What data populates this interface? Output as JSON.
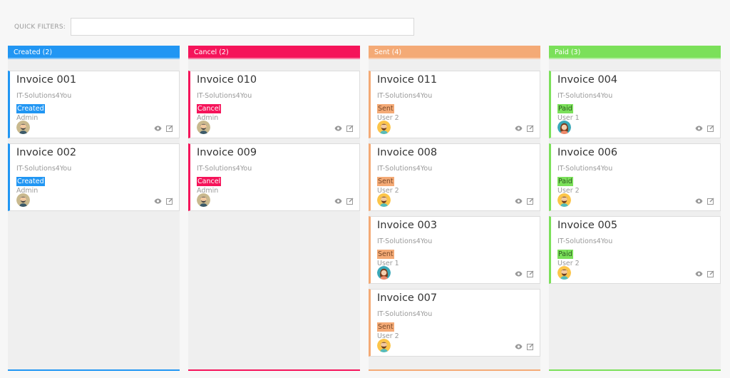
{
  "quick_filters": {
    "label": "QUICK FILTERS:",
    "value": ""
  },
  "columns": [
    {
      "title": "Created (2)",
      "color": "#2196f3",
      "cards": [
        {
          "title": "Invoice 001",
          "org": "IT-Solutions4You",
          "status": "Created",
          "user": "Admin",
          "avatar": "man-gray"
        },
        {
          "title": "Invoice 002",
          "org": "IT-Solutions4You",
          "status": "Created",
          "user": "Admin",
          "avatar": "man-gray"
        }
      ]
    },
    {
      "title": "Cancel (2)",
      "color": "#f5145a",
      "cards": [
        {
          "title": "Invoice 010",
          "org": "IT-Solutions4You",
          "status": "Cancel",
          "user": "Admin",
          "avatar": "man-gray"
        },
        {
          "title": "Invoice 009",
          "org": "IT-Solutions4You",
          "status": "Cancel",
          "user": "Admin",
          "avatar": "man-gray"
        }
      ]
    },
    {
      "title": "Sent (4)",
      "color": "#f4aa76",
      "status_text": "#7a4a2a",
      "cards": [
        {
          "title": "Invoice 011",
          "org": "IT-Solutions4You",
          "status": "Sent",
          "user": "User 2",
          "avatar": "man-yellow"
        },
        {
          "title": "Invoice 008",
          "org": "IT-Solutions4You",
          "status": "Sent",
          "user": "User 2",
          "avatar": "man-yellow"
        },
        {
          "title": "Invoice 003",
          "org": "IT-Solutions4You",
          "status": "Sent",
          "user": "User 1",
          "avatar": "woman"
        },
        {
          "title": "Invoice 007",
          "org": "IT-Solutions4You",
          "status": "Sent",
          "user": "User 2",
          "avatar": "man-yellow"
        }
      ]
    },
    {
      "title": "Paid (3)",
      "color": "#7be05a",
      "status_text": "#2d5a20",
      "cards": [
        {
          "title": "Invoice 004",
          "org": "IT-Solutions4You",
          "status": "Paid",
          "user": "User 1",
          "avatar": "woman"
        },
        {
          "title": "Invoice 006",
          "org": "IT-Solutions4You",
          "status": "Paid",
          "user": "User 2",
          "avatar": "man-yellow"
        },
        {
          "title": "Invoice 005",
          "org": "IT-Solutions4You",
          "status": "Paid",
          "user": "User 2",
          "avatar": "man-yellow"
        }
      ]
    }
  ]
}
